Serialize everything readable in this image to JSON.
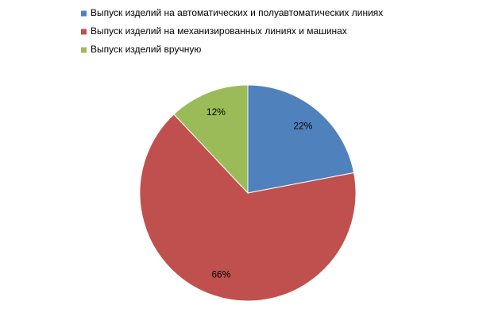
{
  "chart_data": {
    "type": "pie",
    "categories": [
      "Выпуск изделий на автоматических и полуавтоматических линиях",
      "Выпуск изделий на механизированных линиях и машинах",
      "Выпуск изделий вручную"
    ],
    "values": [
      22,
      66,
      12
    ],
    "value_labels": [
      "22%",
      "66%",
      "12%"
    ],
    "colors": [
      "#4f81bd",
      "#c0504d",
      "#9bbb59"
    ]
  }
}
